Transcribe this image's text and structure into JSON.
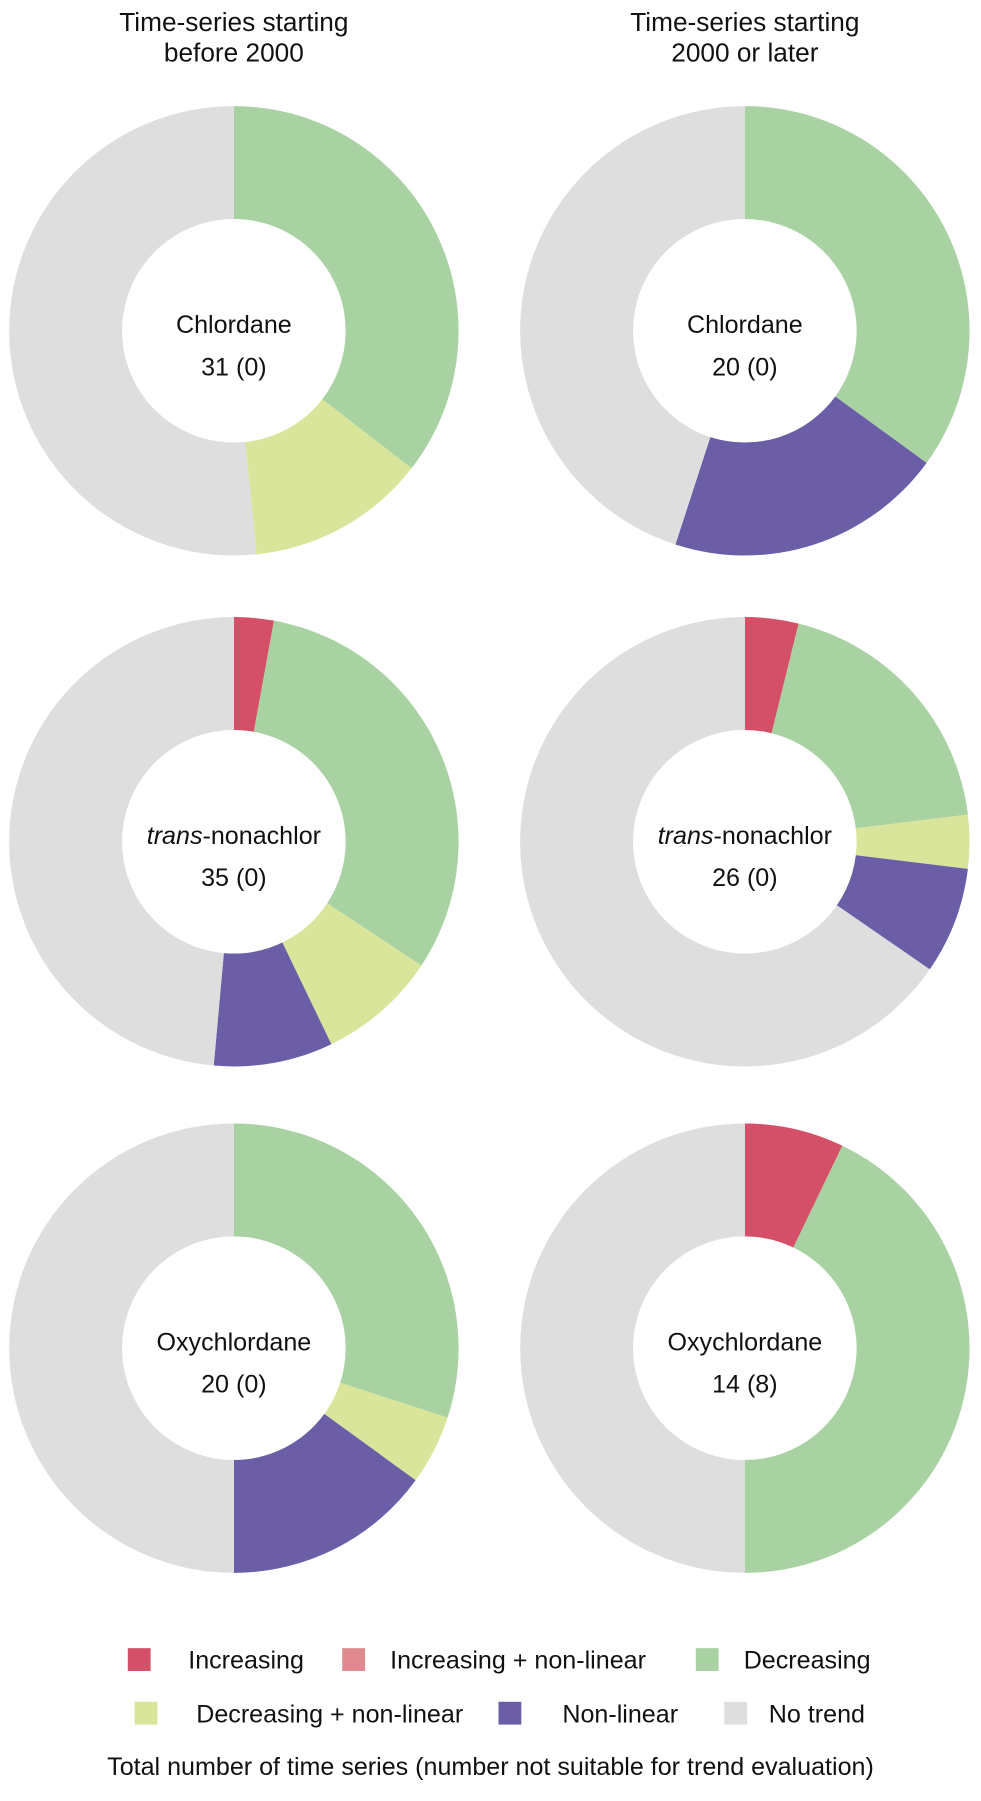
{
  "chart_data": {
    "type": "pie",
    "variant": "donut",
    "columns": [
      {
        "title_lines": [
          "Time-series starting",
          "before 2000"
        ]
      },
      {
        "title_lines": [
          "Time-series starting",
          "2000 or later"
        ]
      }
    ],
    "categories": [
      "Increasing",
      "Increasing + non-linear",
      "Decreasing",
      "Decreasing + non-linear",
      "Non-linear",
      "No trend"
    ],
    "colors": {
      "Increasing": "#d44f68",
      "Increasing + non-linear": "#e08a90",
      "Decreasing": "#a9d2a3",
      "Decreasing + non-linear": "#d9e59a",
      "Non-linear": "#6b5ea6",
      "No trend": "#dedede"
    },
    "charts": [
      {
        "column": 0,
        "row": 0,
        "name_italic": "",
        "name": "Chlordane",
        "label": "31 (0)",
        "values": {
          "Increasing": 0,
          "Increasing + non-linear": 0,
          "Decreasing": 11,
          "Decreasing + non-linear": 4,
          "Non-linear": 0,
          "No trend": 16
        }
      },
      {
        "column": 1,
        "row": 0,
        "name_italic": "",
        "name": "Chlordane",
        "label": "20 (0)",
        "values": {
          "Increasing": 0,
          "Increasing + non-linear": 0,
          "Decreasing": 7,
          "Decreasing + non-linear": 0,
          "Non-linear": 4,
          "No trend": 9
        }
      },
      {
        "column": 0,
        "row": 1,
        "name_italic": "trans",
        "name": "-nonachlor",
        "label": "35 (0)",
        "values": {
          "Increasing": 1,
          "Increasing + non-linear": 0,
          "Decreasing": 11,
          "Decreasing + non-linear": 3,
          "Non-linear": 3,
          "No trend": 17
        }
      },
      {
        "column": 1,
        "row": 1,
        "name_italic": "trans",
        "name": "-nonachlor",
        "label": "26 (0)",
        "values": {
          "Increasing": 1,
          "Increasing + non-linear": 0,
          "Decreasing": 5,
          "Decreasing + non-linear": 1,
          "Non-linear": 2,
          "No trend": 17
        }
      },
      {
        "column": 0,
        "row": 2,
        "name_italic": "",
        "name": "Oxychlordane",
        "label": "20 (0)",
        "values": {
          "Increasing": 0,
          "Increasing + non-linear": 0,
          "Decreasing": 6,
          "Decreasing + non-linear": 1,
          "Non-linear": 3,
          "No trend": 10
        }
      },
      {
        "column": 1,
        "row": 2,
        "name_italic": "",
        "name": "Oxychlordane",
        "label": "14 (8)",
        "values": {
          "Increasing": 1,
          "Increasing + non-linear": 0,
          "Decreasing": 6,
          "Decreasing + non-linear": 0,
          "Non-linear": 0,
          "No trend": 7
        }
      }
    ],
    "legend": {
      "position": "bottom",
      "entries": [
        "Increasing",
        "Increasing + non-linear",
        "Decreasing",
        "Decreasing + non-linear",
        "Non-linear",
        "No trend"
      ]
    },
    "footnote": "Total number of time series (number not suitable for trend evaluation)"
  }
}
